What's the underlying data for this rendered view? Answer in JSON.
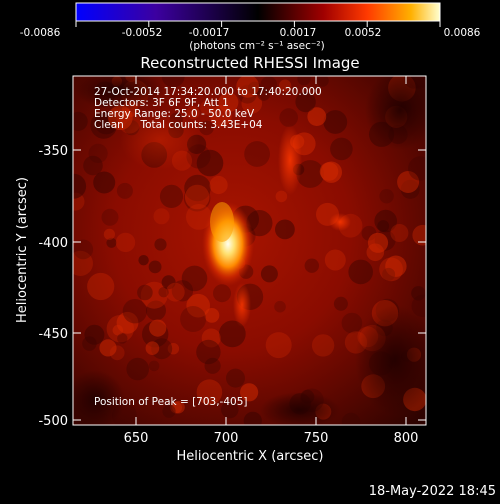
{
  "colorbar": {
    "tick_labels": [
      "-0.0086",
      "-0.0052",
      "-0.0017",
      "0.0017",
      "0.0052",
      "0.0086"
    ],
    "unit_label": "(photons cm⁻² s⁻¹ asec⁻²)"
  },
  "plot": {
    "title": "Reconstructed RHESSI Image",
    "xlabel": "Heliocentric X (arcsec)",
    "ylabel": "Heliocentric Y (arcsec)",
    "x_ticks": [
      "650",
      "700",
      "750",
      "800"
    ],
    "y_ticks": [
      "-350",
      "-400",
      "-450",
      "-500"
    ]
  },
  "info": {
    "time_range": "27-Oct-2014 17:34:20.000 to 17:40:20.000",
    "detectors": "Detectors: 3F 6F 9F, Att 1",
    "energy_range": "Energy Range: 25.0 - 50.0 keV",
    "clean_counts": "Clean     Total counts: 3.43E+04",
    "peak_position": "Position of Peak = [703,-405]"
  },
  "footer": {
    "timestamp": "18-May-2022 18:45"
  },
  "colors": {
    "background": "#000000",
    "colormap": [
      "#0000ff",
      "#3a0090",
      "#000000",
      "#8a0000",
      "#ff3000",
      "#ffb000",
      "#ffffc0"
    ]
  }
}
